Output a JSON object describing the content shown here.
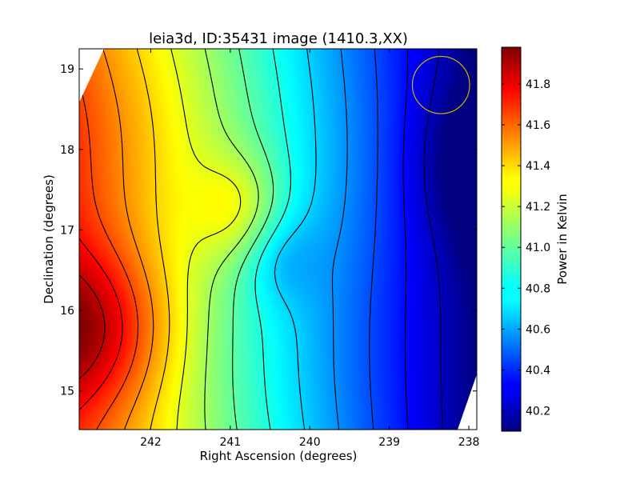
{
  "chart_data": {
    "type": "heatmap",
    "title": "leia3d, ID:35431 image (1410.3,XX)",
    "xlabel": "Right Ascension (degrees)",
    "ylabel": "Declination (degrees)",
    "colorbar_label": "Power in Kelvin",
    "colormap": "jet",
    "x_reversed": true,
    "xlim": [
      242.9,
      237.9
    ],
    "ylim": [
      14.52,
      19.25
    ],
    "x_ticks": [
      242,
      241,
      240,
      239,
      238
    ],
    "y_ticks": [
      15,
      16,
      17,
      18,
      19
    ],
    "cbar_range": [
      40.1,
      41.98
    ],
    "cbar_ticks": [
      "40.2",
      "40.4",
      "40.6",
      "40.8",
      "41.0",
      "41.2",
      "41.4",
      "41.6",
      "41.8"
    ],
    "power_range_kelvin": [
      40.1,
      41.98
    ],
    "max_location": {
      "ra": 242.75,
      "dec": 15.85,
      "value": 41.95
    },
    "min_location": {
      "ra": 238.1,
      "dec": 18.0,
      "value": 40.12
    },
    "circle_marker": {
      "ra": 238.35,
      "dec": 18.8,
      "radius_deg": 0.36,
      "color": "#c8b400"
    },
    "contour_color": "#000000",
    "contour_count": 14
  }
}
